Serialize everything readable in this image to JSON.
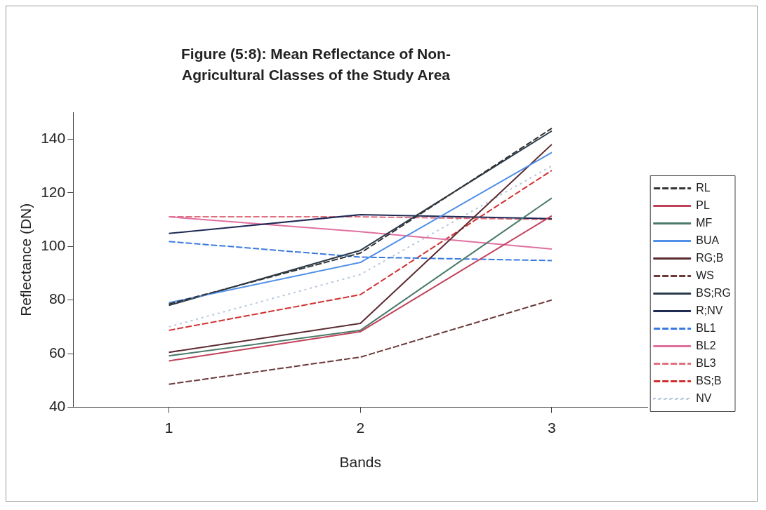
{
  "chart_data": {
    "type": "line",
    "title": "Figure (5:8): Mean Reflectance of Non-Agricultural Classes of the Study Area",
    "xlabel": "Bands",
    "ylabel": "Reflectance (DN)",
    "categories": [
      "1",
      "2",
      "3"
    ],
    "ylim": [
      40,
      150
    ],
    "yticks": [
      40,
      60,
      80,
      100,
      120,
      140
    ],
    "grid": false,
    "legend": "right",
    "marker": "none",
    "series": [
      {
        "name": "RL",
        "color": "#333333",
        "line_style": "dashed",
        "values": [
          78.5,
          97.5,
          144
        ]
      },
      {
        "name": "PL",
        "color": "#c0405a",
        "line_style": "solid",
        "values": [
          57.3,
          68.2,
          111.4
        ]
      },
      {
        "name": "MF",
        "color": "#4a7a6a",
        "line_style": "solid",
        "values": [
          59.2,
          68.7,
          118
        ]
      },
      {
        "name": "BUA",
        "color": "#4f8fe8",
        "line_style": "solid",
        "values": [
          79,
          94,
          135
        ]
      },
      {
        "name": "RG;B",
        "color": "#5a2a30",
        "line_style": "solid",
        "values": [
          60.5,
          71.3,
          138
        ]
      },
      {
        "name": "WS",
        "color": "#6a3a3a",
        "line_style": "dashed",
        "values": [
          48.6,
          58.7,
          80
        ]
      },
      {
        "name": "BS;RG",
        "color": "#2a3a4a",
        "line_style": "solid",
        "values": [
          78,
          98.5,
          143
        ]
      },
      {
        "name": "R;NV",
        "color": "#1f2a55",
        "line_style": "solid",
        "values": [
          104.8,
          111.8,
          110.3
        ]
      },
      {
        "name": "BL1",
        "color": "#3a7ae0",
        "line_style": "dashed",
        "values": [
          101.8,
          96,
          94.7
        ]
      },
      {
        "name": "BL2",
        "color": "#e070a0",
        "line_style": "solid",
        "values": [
          111,
          105.5,
          99
        ]
      },
      {
        "name": "BL3",
        "color": "#e07080",
        "line_style": "dashed",
        "values": [
          111,
          111,
          110
        ]
      },
      {
        "name": "BS;B",
        "color": "#d03030",
        "line_style": "dashed",
        "values": [
          68.7,
          82,
          128.3
        ]
      },
      {
        "name": "NV",
        "color": "#b8c8dc",
        "line_style": "dotted",
        "values": [
          70,
          89.5,
          130
        ]
      }
    ]
  }
}
